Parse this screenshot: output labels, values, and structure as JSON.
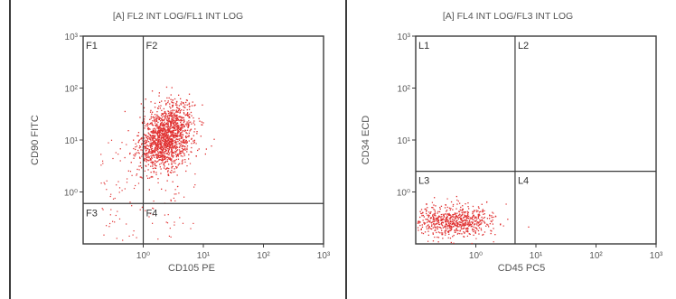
{
  "chart_data": [
    {
      "type": "scatter",
      "title": "[A] FL2 INT LOG/FL1 INT LOG",
      "xlabel": "CD105 PE",
      "ylabel": "CD90 FITC",
      "xscale": "log",
      "yscale": "log",
      "xlim": [
        0.1,
        1000
      ],
      "ylim": [
        0.1,
        1000
      ],
      "x_tick_labels": [
        "10⁰",
        "10¹",
        "10²",
        "10³"
      ],
      "y_tick_labels": [
        "10⁰",
        "10¹",
        "10²",
        "10³"
      ],
      "quadrant_labels": [
        "F1",
        "F2",
        "F3",
        "F4"
      ],
      "gates": {
        "x": 1.0,
        "y": 0.6
      },
      "population": {
        "center_x": 2.4,
        "center_y": 12,
        "spread_log_x": 0.22,
        "spread_log_y": 0.3,
        "count": 1500,
        "color": "#e03030"
      },
      "grid": false
    },
    {
      "type": "scatter",
      "title": "[A] FL4 INT LOG/FL3 INT LOG",
      "xlabel": "CD45 PC5",
      "ylabel": "CD34 ECD",
      "xscale": "log",
      "yscale": "log",
      "xlim": [
        0.1,
        1000
      ],
      "ylim": [
        0.1,
        1000
      ],
      "x_tick_labels": [
        "10⁰",
        "10¹",
        "10²",
        "10³"
      ],
      "y_tick_labels": [
        "10⁰",
        "10¹",
        "10²",
        "10³"
      ],
      "quadrant_labels": [
        "L1",
        "L2",
        "L3",
        "L4"
      ],
      "gates": {
        "x": 4.5,
        "y": 2.5
      },
      "population": {
        "center_x": 0.42,
        "center_y": 0.28,
        "spread_log_x": 0.33,
        "spread_log_y": 0.14,
        "count": 650,
        "color": "#e03030"
      },
      "grid": false
    }
  ]
}
